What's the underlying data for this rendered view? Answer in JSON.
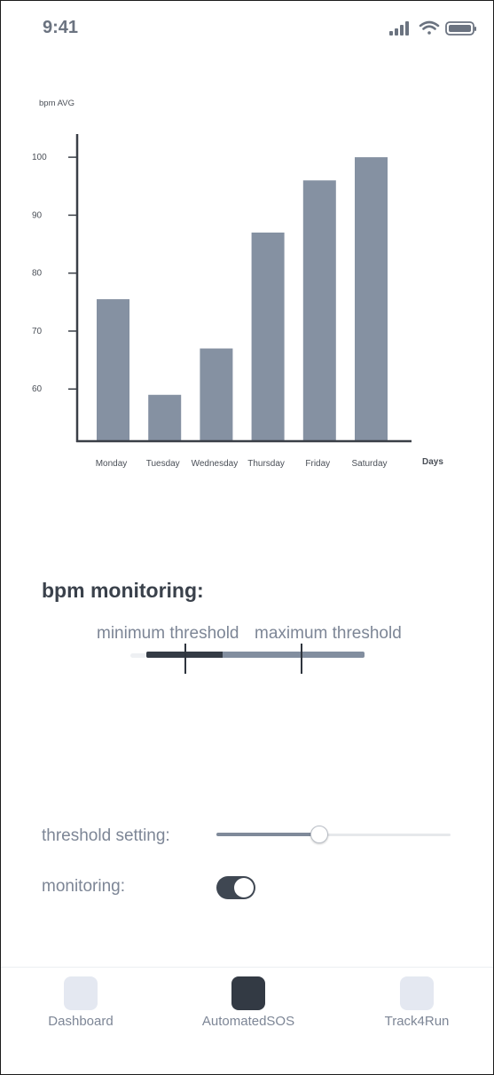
{
  "status_bar": {
    "time": "9:41",
    "icons": [
      "signal-icon",
      "wifi-icon",
      "battery-icon"
    ]
  },
  "chart_data": {
    "type": "bar",
    "ylabel": "bpm AVG",
    "xlabel": "Days",
    "categories": [
      "Monday",
      "Tuesday",
      "Wednesday",
      "Thursday",
      "Friday",
      "Saturday"
    ],
    "values": [
      75.5,
      59,
      67,
      87,
      96,
      100
    ],
    "yticks": [
      60,
      70,
      80,
      90,
      100
    ],
    "ylim": [
      51,
      104
    ],
    "grid": false,
    "bar_color": "#8591a2",
    "axis_color": "#3a3f47"
  },
  "monitoring": {
    "title": "bpm monitoring:",
    "min_label": "minimum threshold",
    "max_label": "maximum threshold",
    "range_fill_fraction": 0.35,
    "min_marker_fraction": 0.18,
    "max_marker_fraction": 0.71
  },
  "settings": {
    "threshold_label": "threshold setting:",
    "threshold_value_fraction": 0.44,
    "monitoring_label": "monitoring:",
    "monitoring_enabled": true
  },
  "tabs": [
    {
      "label": "Dashboard",
      "active": false
    },
    {
      "label": "AutomatedSOS",
      "active": true
    },
    {
      "label": "Track4Run",
      "active": false
    }
  ],
  "colors": {
    "accent_dark": "#333a44",
    "accent_mid": "#828e9f",
    "text_muted": "#7d8696"
  }
}
